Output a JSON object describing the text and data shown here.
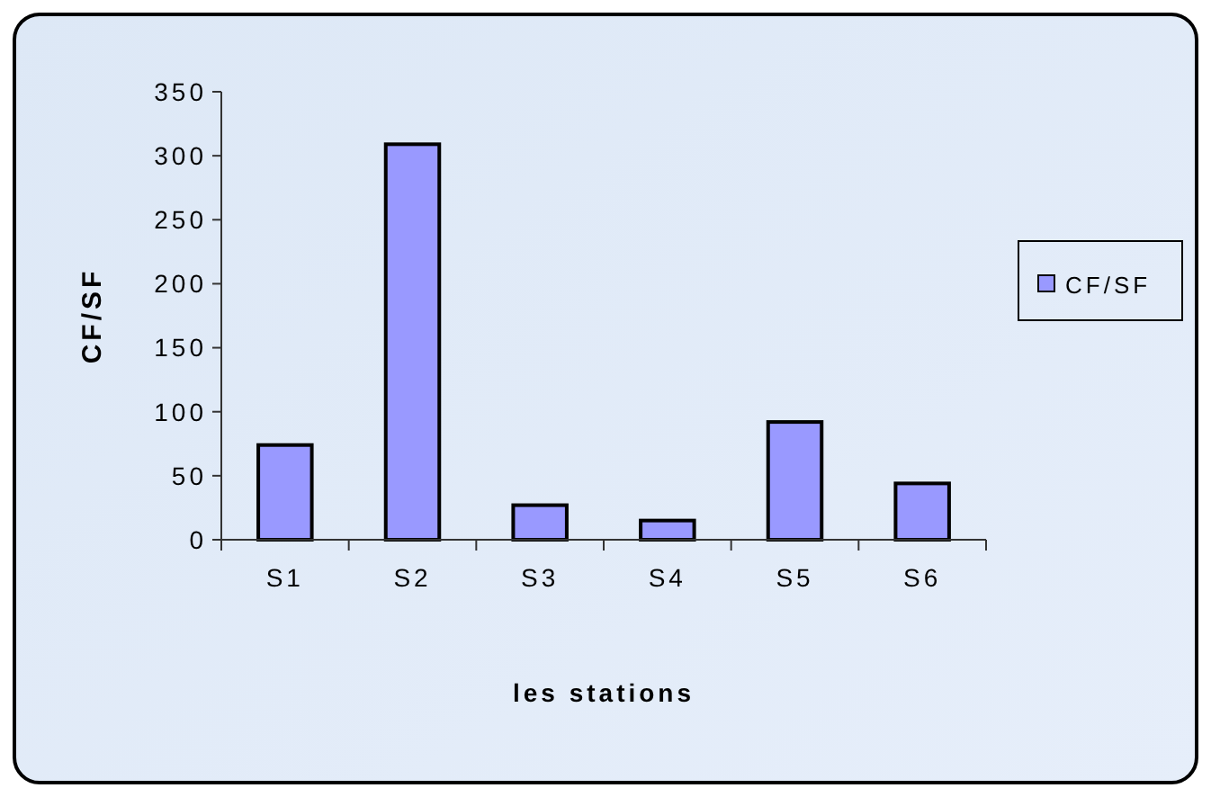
{
  "chart_data": {
    "type": "bar",
    "xlabel": "les stations",
    "ylabel": "CF/SF",
    "categories": [
      "S1",
      "S2",
      "S3",
      "S4",
      "S5",
      "S6"
    ],
    "series": [
      {
        "name": "CF/SF",
        "color": "#9999ff",
        "values": [
          74,
          309,
          27,
          15,
          92,
          44
        ]
      }
    ],
    "ylim": [
      0,
      350
    ],
    "yticks": [
      0,
      50,
      100,
      150,
      200,
      250,
      300,
      350
    ],
    "grid": false,
    "legend": "right"
  }
}
